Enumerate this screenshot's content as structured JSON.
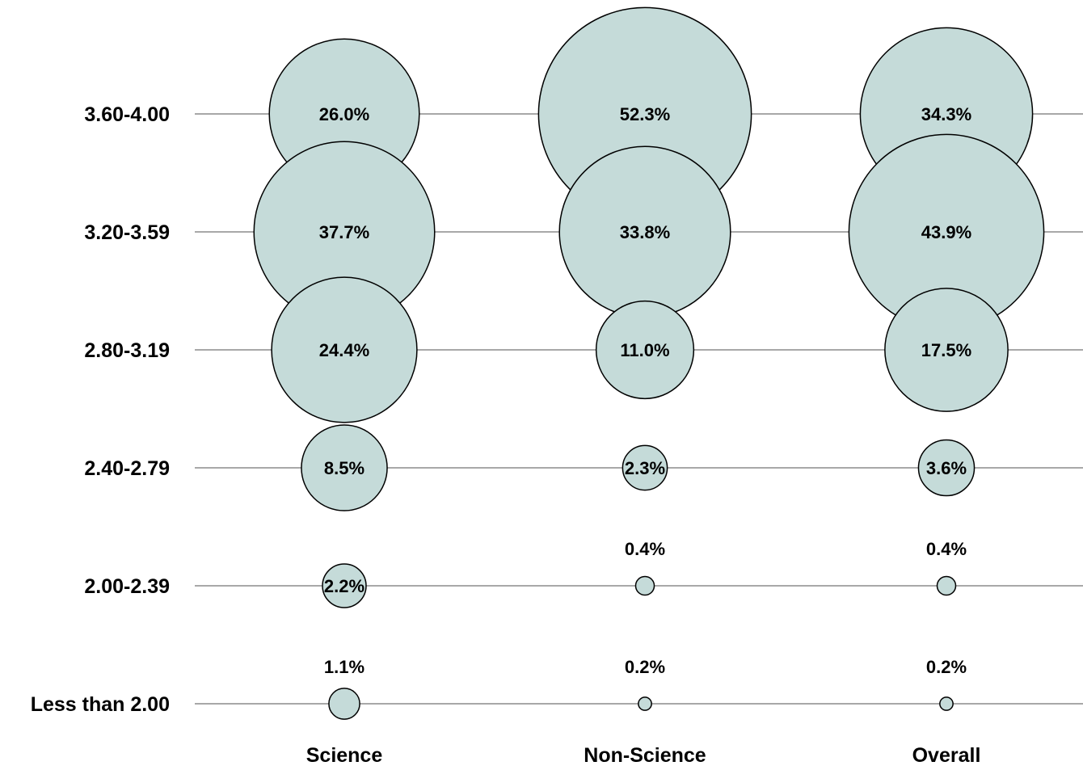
{
  "chart_data": {
    "type": "bubble",
    "title": "",
    "xlabel": "",
    "ylabel": "",
    "categories": [
      "Science",
      "Non-Science",
      "Overall"
    ],
    "rows": [
      "3.60-4.00",
      "3.20-3.59",
      "2.80-3.19",
      "2.40-2.79",
      "2.00-2.39",
      "Less than  2.00"
    ],
    "series": [
      {
        "category": "Science",
        "values": [
          26.0,
          37.7,
          24.4,
          8.5,
          2.2,
          1.1
        ],
        "labels": [
          "26.0%",
          "37.7%",
          "24.4%",
          "8.5%",
          "2.2%",
          "1.1%"
        ]
      },
      {
        "category": "Non-Science",
        "values": [
          52.3,
          33.8,
          11.0,
          2.3,
          0.4,
          0.2
        ],
        "labels": [
          "52.3%",
          "33.8%",
          "11.0%",
          "2.3%",
          "0.4%",
          "0.2%"
        ]
      },
      {
        "category": "Overall",
        "values": [
          34.3,
          43.9,
          17.5,
          3.6,
          0.4,
          0.2
        ],
        "labels": [
          "34.3%",
          "43.9%",
          "17.5%",
          "3.6%",
          "0.4%",
          "0.2%"
        ]
      }
    ],
    "grid": true,
    "legend": "none"
  },
  "colors": {
    "bubble_fill": "#c5dbd9",
    "bubble_stroke": "#000000",
    "gridline": "#8c8c8c",
    "text": "#000000"
  }
}
